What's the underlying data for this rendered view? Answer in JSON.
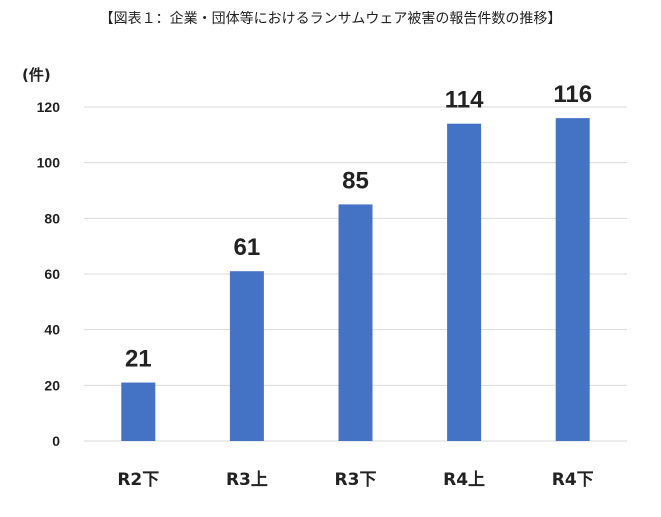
{
  "header": {
    "title": "【図表１：企業・団体等におけるランサムウェア被害の報告件数の推移】"
  },
  "chart_data": {
    "type": "bar",
    "title": "【図表１：企業・団体等におけるランサムウェア被害の報告件数の推移】",
    "ylabel": "(件)",
    "xlabel": "",
    "categories": [
      "R2下",
      "R3上",
      "R3下",
      "R4上",
      "R4下"
    ],
    "values": [
      21,
      61,
      85,
      114,
      116
    ],
    "ylim": [
      0,
      120
    ],
    "yticks": [
      "0",
      "20",
      "40",
      "60",
      "80",
      "100",
      "120"
    ],
    "data_labels": [
      "21",
      "61",
      "85",
      "114",
      "116"
    ],
    "grid": true,
    "legend": "none",
    "colors": {
      "bar": "#4472C4",
      "grid": "#D9D9D9",
      "text": "#222222"
    }
  }
}
